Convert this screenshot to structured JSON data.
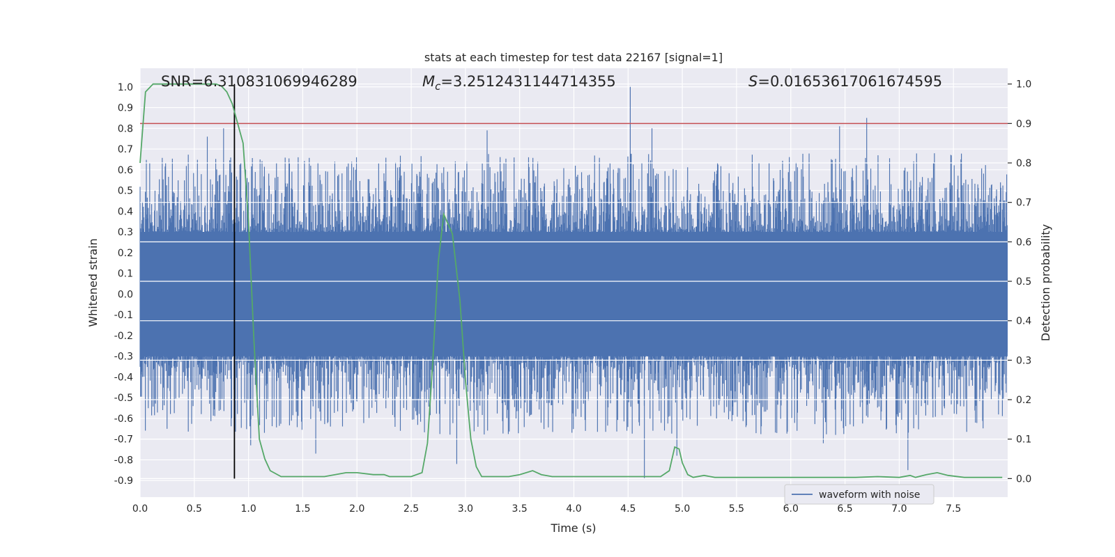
{
  "chart_data": {
    "type": "line",
    "title": "stats at each timestep for test data 22167 [signal=1]",
    "xlabel": "Time (s)",
    "ylabel_left": "Whitened strain",
    "ylabel_right": "Detection probability",
    "xlim": [
      0.0,
      8.0
    ],
    "ylim_left": [
      -0.98,
      1.09
    ],
    "ylim_right": [
      -0.047,
      1.04
    ],
    "xticks": [
      "0.0",
      "0.5",
      "1.0",
      "1.5",
      "2.0",
      "2.5",
      "3.0",
      "3.5",
      "4.0",
      "4.5",
      "5.0",
      "5.5",
      "6.0",
      "6.5",
      "7.0",
      "7.5"
    ],
    "yticks_left": [
      "1.0",
      "0.9",
      "0.8",
      "0.7",
      "0.6",
      "0.5",
      "0.4",
      "0.3",
      "0.2",
      "0.1",
      "0.0",
      "-0.1",
      "-0.2",
      "-0.3",
      "-0.4",
      "-0.5",
      "-0.6",
      "-0.7",
      "-0.8",
      "-0.9"
    ],
    "yticks_right": [
      "1.0",
      "0.9",
      "0.8",
      "0.7",
      "0.6",
      "0.5",
      "0.4",
      "0.3",
      "0.2",
      "0.1",
      "0.0"
    ],
    "annotations": {
      "snr_label": "SNR=6.310831069946289",
      "mc_symbol": "M",
      "mc_sub": "c",
      "mc_value": "=3.2512431144714355",
      "s_symbol": "S",
      "s_value": "=0.01653617061674595"
    },
    "threshold_probability": 0.9,
    "merger_time": 0.87,
    "waveform": {
      "name": "waveform with noise",
      "color": "#4c72b0",
      "x_range": [
        0.0,
        8.0
      ],
      "peaks": [
        {
          "x": 4.52,
          "y": 1.0
        },
        {
          "x": 6.7,
          "y": 0.85
        },
        {
          "x": 4.72,
          "y": 0.8
        },
        {
          "x": 6.45,
          "y": 0.81
        },
        {
          "x": 0.77,
          "y": 0.8
        },
        {
          "x": 0.62,
          "y": 0.76
        },
        {
          "x": 3.2,
          "y": 0.79
        },
        {
          "x": 2.92,
          "y": -0.82
        },
        {
          "x": 4.65,
          "y": -0.89
        },
        {
          "x": 4.95,
          "y": -0.78
        },
        {
          "x": 1.62,
          "y": -0.77
        },
        {
          "x": 7.08,
          "y": -0.85
        },
        {
          "x": 6.3,
          "y": -0.72
        },
        {
          "x": 1.02,
          "y": -0.73
        }
      ]
    },
    "probability": {
      "color": "#55a868",
      "x": [
        0.0,
        0.05,
        0.12,
        0.2,
        0.3,
        0.5,
        0.6,
        0.7,
        0.75,
        0.8,
        0.85,
        0.9,
        0.95,
        1.0,
        1.05,
        1.1,
        1.15,
        1.2,
        1.3,
        1.5,
        1.7,
        1.9,
        2.0,
        2.15,
        2.25,
        2.3,
        2.4,
        2.5,
        2.6,
        2.65,
        2.7,
        2.75,
        2.8,
        2.88,
        2.95,
        3.0,
        3.05,
        3.1,
        3.15,
        3.2,
        3.3,
        3.4,
        3.5,
        3.62,
        3.7,
        3.8,
        4.0,
        4.3,
        4.6,
        4.8,
        4.88,
        4.93,
        4.97,
        5.0,
        5.05,
        5.1,
        5.2,
        5.3,
        5.5,
        5.8,
        6.0,
        6.3,
        6.6,
        6.8,
        7.0,
        7.1,
        7.15,
        7.25,
        7.35,
        7.45,
        7.6,
        7.8,
        7.95
      ],
      "y": [
        0.8,
        0.98,
        1.0,
        1.0,
        1.0,
        1.0,
        1.0,
        1.0,
        0.995,
        0.98,
        0.95,
        0.9,
        0.85,
        0.65,
        0.35,
        0.1,
        0.05,
        0.02,
        0.005,
        0.005,
        0.005,
        0.015,
        0.015,
        0.01,
        0.01,
        0.005,
        0.005,
        0.005,
        0.015,
        0.09,
        0.3,
        0.55,
        0.67,
        0.62,
        0.45,
        0.25,
        0.1,
        0.03,
        0.005,
        0.005,
        0.005,
        0.005,
        0.01,
        0.02,
        0.01,
        0.005,
        0.005,
        0.005,
        0.005,
        0.005,
        0.02,
        0.08,
        0.075,
        0.04,
        0.01,
        0.003,
        0.008,
        0.003,
        0.003,
        0.003,
        0.003,
        0.003,
        0.003,
        0.005,
        0.003,
        0.008,
        0.003,
        0.01,
        0.015,
        0.008,
        0.003,
        0.003,
        0.003
      ]
    },
    "legend": {
      "location": "lower-right",
      "entries": [
        "waveform with noise"
      ]
    },
    "grid": true
  }
}
